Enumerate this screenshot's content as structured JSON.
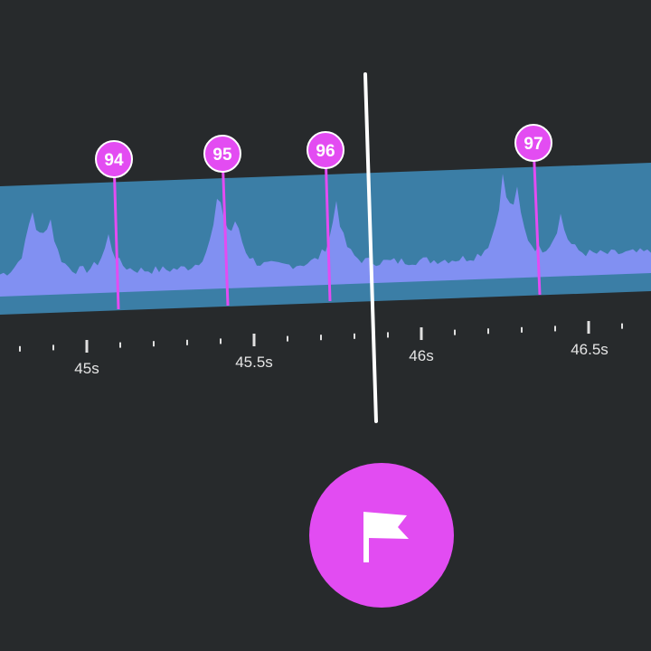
{
  "timeline": {
    "markers": [
      "94",
      "95",
      "96",
      "97"
    ],
    "time_labels": [
      "45s",
      "45.5s",
      "46s",
      "46.5s"
    ]
  }
}
